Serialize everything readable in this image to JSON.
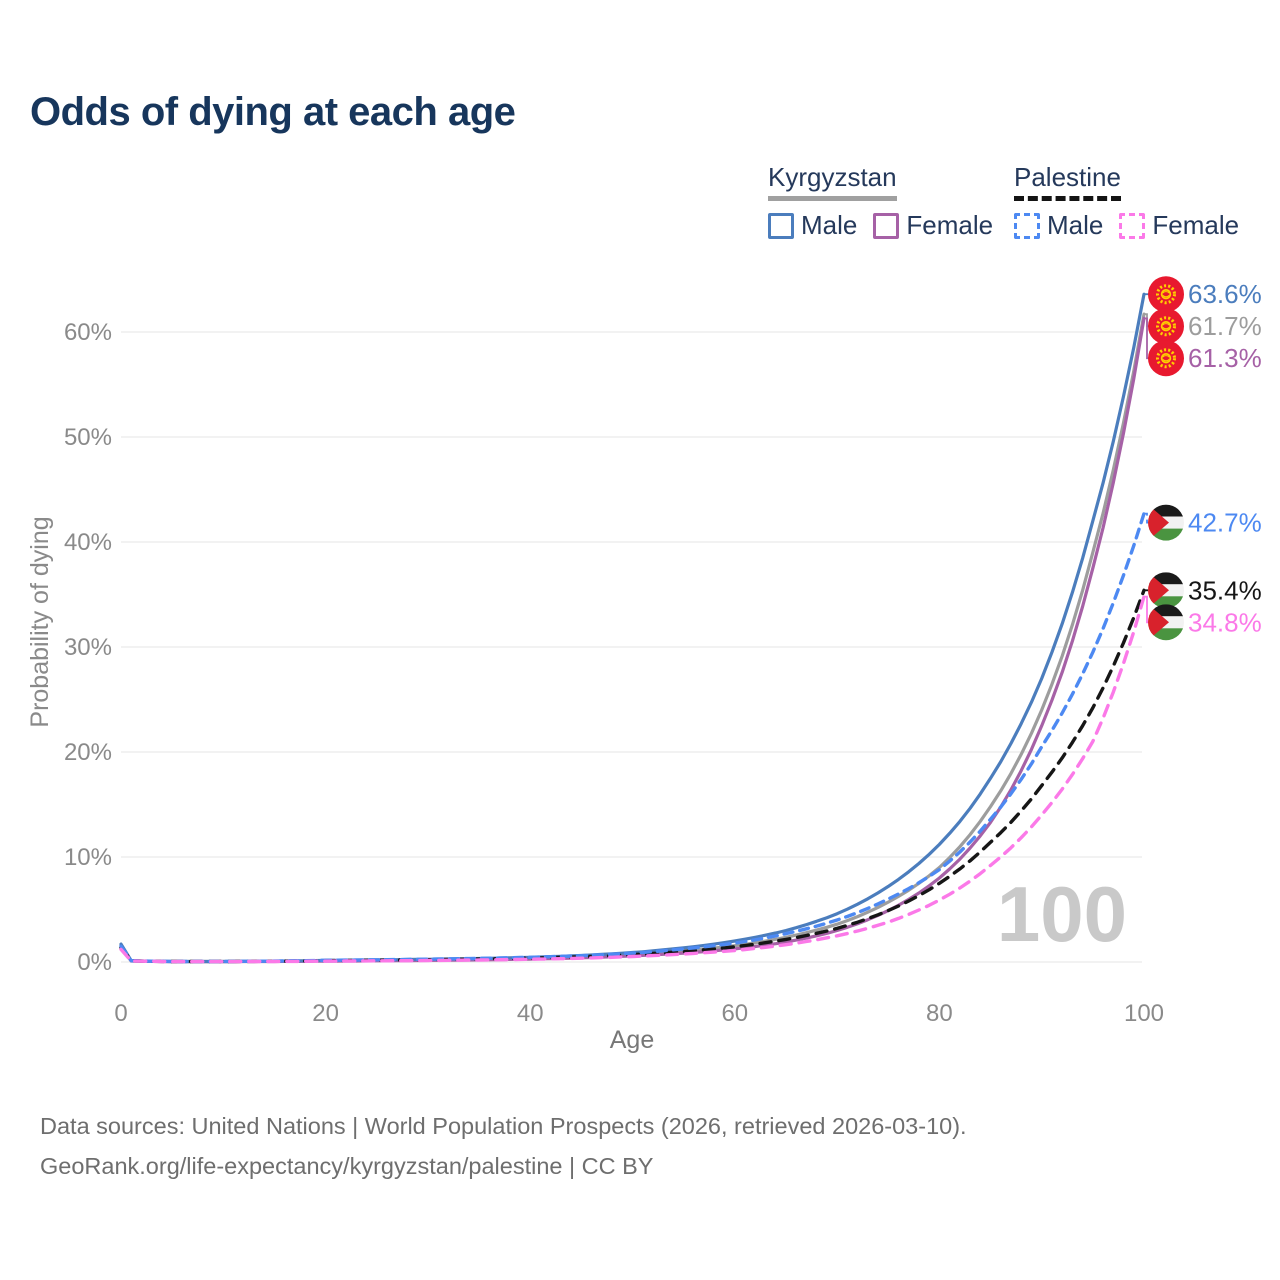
{
  "title": "Odds of dying at each age",
  "legend": {
    "groups": [
      {
        "name": "Kyrgyzstan",
        "line_style": "solid",
        "line_color": "#a0a0a0",
        "items": [
          {
            "label": "Male",
            "color": "#4b7dbd",
            "dashed": false
          },
          {
            "label": "Female",
            "color": "#a661a6",
            "dashed": false
          }
        ]
      },
      {
        "name": "Palestine",
        "line_style": "dashed",
        "line_color": "#141414",
        "items": [
          {
            "label": "Male",
            "color": "#4d89f2",
            "dashed": true
          },
          {
            "label": "Female",
            "color": "#fb79e8",
            "dashed": true
          }
        ]
      }
    ]
  },
  "watermark": "100",
  "footer": {
    "line1": "Data sources: United Nations | World Population Prospects (2026, retrieved 2026-03-10).",
    "line2": "GeoRank.org/life-expectancy/kyrgyzstan/palestine | CC BY"
  },
  "chart_data": {
    "type": "line",
    "title": "Odds of dying at each age",
    "xlabel": "Age",
    "ylabel": "Probability of dying",
    "xlim": [
      0,
      100
    ],
    "ylim_percent": [
      0,
      66
    ],
    "x_ticks": [
      0,
      20,
      40,
      60,
      80,
      100
    ],
    "y_ticks": [
      "0%",
      "10%",
      "20%",
      "30%",
      "40%",
      "50%",
      "60%"
    ],
    "grid": "horizontal",
    "legend_position": "top-right",
    "colors": {
      "kyrgyzstan_male": "#4b7dbd",
      "kyrgyzstan_both": "#9d9d9d",
      "kyrgyzstan_female": "#a661a6",
      "palestine_male": "#4d89f2",
      "palestine_both": "#161616",
      "palestine_female": "#fb79e8",
      "grid": "#ebebeb",
      "axis_text": "#8a8a8a",
      "watermark": "#c9c9c9",
      "title_text": "#17365c"
    },
    "series": [
      {
        "id": "kyrgyzstan-both",
        "name": "Kyrgyzstan (both sexes)",
        "country": "Kyrgyzstan",
        "sex": "Both",
        "flag": "kyrgyzstan",
        "color": "#9d9d9d",
        "dash": null,
        "width": 3.2,
        "end_value": 61.7,
        "end_label": "61.7%",
        "points": [
          [
            0,
            1.55
          ],
          [
            1,
            0.11
          ],
          [
            5,
            0.045
          ],
          [
            10,
            0.045
          ],
          [
            15,
            0.07
          ],
          [
            20,
            0.12
          ],
          [
            25,
            0.16
          ],
          [
            30,
            0.21
          ],
          [
            35,
            0.27
          ],
          [
            40,
            0.37
          ],
          [
            45,
            0.5
          ],
          [
            50,
            0.72
          ],
          [
            55,
            1.05
          ],
          [
            60,
            1.55
          ],
          [
            65,
            2.35
          ],
          [
            70,
            3.6
          ],
          [
            75,
            5.7
          ],
          [
            80,
            9.0
          ],
          [
            85,
            14.8
          ],
          [
            90,
            24.0
          ],
          [
            95,
            39.0
          ],
          [
            100,
            61.7
          ]
        ]
      },
      {
        "id": "kyrgyzstan-female",
        "name": "Kyrgyzstan Female",
        "country": "Kyrgyzstan",
        "sex": "Female",
        "flag": "kyrgyzstan",
        "color": "#a661a6",
        "dash": null,
        "width": 3.2,
        "end_value": 61.3,
        "end_label": "61.3%",
        "points": [
          [
            0,
            1.4
          ],
          [
            1,
            0.1
          ],
          [
            5,
            0.04
          ],
          [
            10,
            0.04
          ],
          [
            15,
            0.05
          ],
          [
            20,
            0.08
          ],
          [
            25,
            0.11
          ],
          [
            30,
            0.15
          ],
          [
            35,
            0.2
          ],
          [
            40,
            0.28
          ],
          [
            45,
            0.4
          ],
          [
            50,
            0.58
          ],
          [
            55,
            0.85
          ],
          [
            60,
            1.25
          ],
          [
            65,
            1.9
          ],
          [
            70,
            3.0
          ],
          [
            75,
            4.9
          ],
          [
            80,
            8.0
          ],
          [
            85,
            13.3
          ],
          [
            90,
            22.5
          ],
          [
            95,
            37.5
          ],
          [
            100,
            61.3
          ]
        ]
      },
      {
        "id": "kyrgyzstan-male",
        "name": "Kyrgyzstan Male",
        "country": "Kyrgyzstan",
        "sex": "Male",
        "flag": "kyrgyzstan",
        "color": "#4b7dbd",
        "dash": null,
        "width": 3.2,
        "end_value": 63.6,
        "end_label": "63.6%",
        "points": [
          [
            0,
            1.7
          ],
          [
            1,
            0.12
          ],
          [
            5,
            0.05
          ],
          [
            10,
            0.05
          ],
          [
            15,
            0.08
          ],
          [
            20,
            0.15
          ],
          [
            25,
            0.2
          ],
          [
            30,
            0.26
          ],
          [
            35,
            0.33
          ],
          [
            40,
            0.45
          ],
          [
            45,
            0.62
          ],
          [
            50,
            0.9
          ],
          [
            55,
            1.35
          ],
          [
            60,
            2.0
          ],
          [
            65,
            3.0
          ],
          [
            70,
            4.6
          ],
          [
            75,
            7.2
          ],
          [
            80,
            11.2
          ],
          [
            85,
            17.5
          ],
          [
            90,
            27.0
          ],
          [
            95,
            42.0
          ],
          [
            100,
            63.6
          ]
        ]
      },
      {
        "id": "palestine-both",
        "name": "Palestine (both sexes)",
        "country": "Palestine",
        "sex": "Both",
        "flag": "palestine",
        "color": "#161616",
        "dash": "11 8",
        "width": 3.4,
        "end_value": 35.4,
        "end_label": "35.4%",
        "points": [
          [
            0,
            1.35
          ],
          [
            1,
            0.11
          ],
          [
            5,
            0.045
          ],
          [
            10,
            0.045
          ],
          [
            15,
            0.07
          ],
          [
            20,
            0.13
          ],
          [
            25,
            0.17
          ],
          [
            30,
            0.22
          ],
          [
            35,
            0.28
          ],
          [
            40,
            0.37
          ],
          [
            45,
            0.5
          ],
          [
            50,
            0.7
          ],
          [
            55,
            1.0
          ],
          [
            60,
            1.45
          ],
          [
            65,
            2.15
          ],
          [
            70,
            3.2
          ],
          [
            75,
            4.9
          ],
          [
            80,
            7.5
          ],
          [
            85,
            11.4
          ],
          [
            90,
            16.8
          ],
          [
            95,
            24.2
          ],
          [
            100,
            35.4
          ]
        ]
      },
      {
        "id": "palestine-male",
        "name": "Palestine Male",
        "country": "Palestine",
        "sex": "Male",
        "flag": "palestine",
        "color": "#4d89f2",
        "dash": "9 7",
        "width": 3.4,
        "end_value": 42.7,
        "end_label": "42.7%",
        "points": [
          [
            0,
            1.5
          ],
          [
            1,
            0.12
          ],
          [
            5,
            0.05
          ],
          [
            10,
            0.05
          ],
          [
            15,
            0.09
          ],
          [
            20,
            0.16
          ],
          [
            25,
            0.21
          ],
          [
            30,
            0.27
          ],
          [
            35,
            0.34
          ],
          [
            40,
            0.45
          ],
          [
            45,
            0.6
          ],
          [
            50,
            0.85
          ],
          [
            55,
            1.25
          ],
          [
            60,
            1.8
          ],
          [
            65,
            2.7
          ],
          [
            70,
            4.0
          ],
          [
            75,
            6.0
          ],
          [
            80,
            8.8
          ],
          [
            85,
            13.6
          ],
          [
            90,
            20.5
          ],
          [
            95,
            29.5
          ],
          [
            100,
            42.7
          ]
        ]
      },
      {
        "id": "palestine-female",
        "name": "Palestine Female",
        "country": "Palestine",
        "sex": "Female",
        "flag": "palestine",
        "color": "#fb79e8",
        "dash": "11 8",
        "width": 3.4,
        "end_value": 34.8,
        "end_label": "34.8%",
        "points": [
          [
            0,
            1.2
          ],
          [
            1,
            0.1
          ],
          [
            5,
            0.04
          ],
          [
            10,
            0.04
          ],
          [
            15,
            0.05
          ],
          [
            20,
            0.08
          ],
          [
            25,
            0.11
          ],
          [
            30,
            0.14
          ],
          [
            35,
            0.19
          ],
          [
            40,
            0.26
          ],
          [
            45,
            0.36
          ],
          [
            50,
            0.52
          ],
          [
            55,
            0.76
          ],
          [
            60,
            1.1
          ],
          [
            65,
            1.65
          ],
          [
            70,
            2.5
          ],
          [
            75,
            3.8
          ],
          [
            80,
            5.9
          ],
          [
            85,
            9.2
          ],
          [
            90,
            14.0
          ],
          [
            95,
            21.0
          ],
          [
            100,
            34.8
          ]
        ]
      }
    ]
  }
}
